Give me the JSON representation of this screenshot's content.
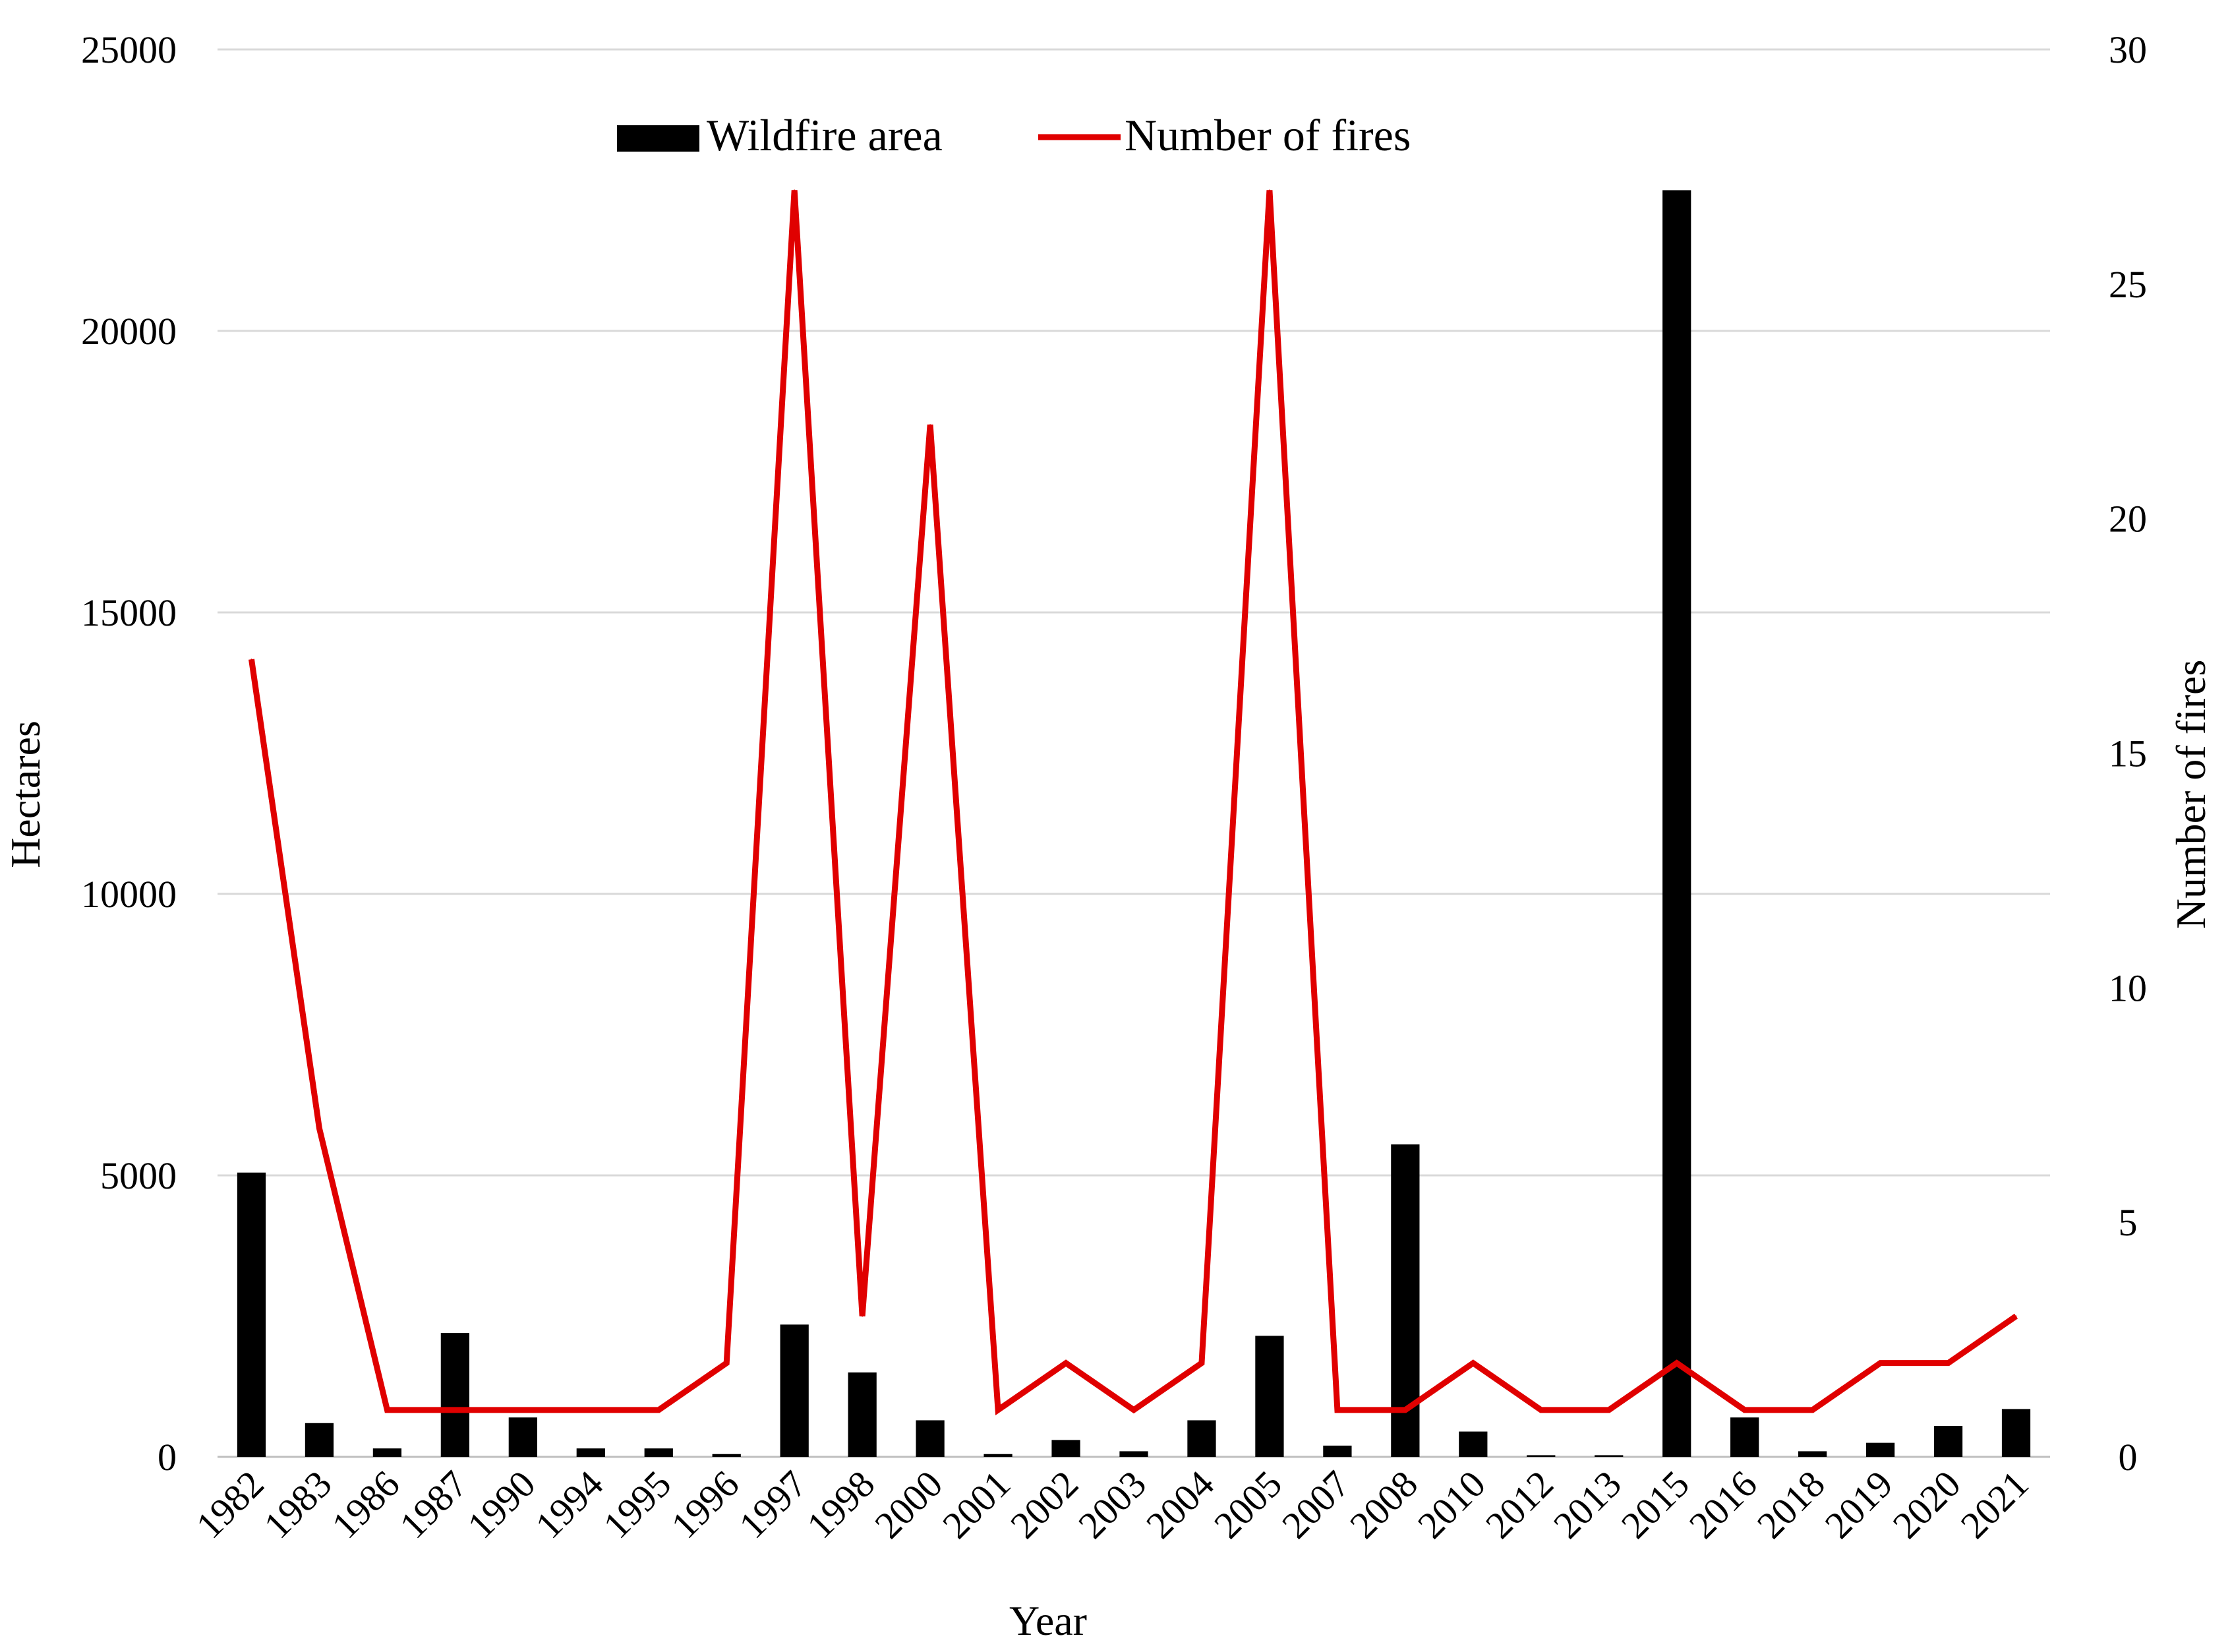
{
  "chart_data": {
    "type": "bar",
    "xlabel": "Year",
    "ylabel": "Hectares",
    "y2label": "Number of fires",
    "ylim": [
      0,
      25000
    ],
    "y2lim": [
      0,
      30
    ],
    "yticks": [
      0,
      5000,
      10000,
      15000,
      20000,
      25000
    ],
    "y2ticks": [
      0,
      5,
      10,
      15,
      20,
      25,
      30
    ],
    "grid": true,
    "legend_position": "top-center",
    "categories": [
      "1982",
      "1983",
      "1986",
      "1987",
      "1990",
      "1994",
      "1995",
      "1996",
      "1997",
      "1998",
      "2000",
      "2001",
      "2002",
      "2003",
      "2004",
      "2005",
      "2007",
      "2008",
      "2010",
      "2012",
      "2013",
      "2015",
      "2016",
      "2018",
      "2019",
      "2020",
      "2021"
    ],
    "series": [
      {
        "name": "Wildfire area",
        "type": "bar",
        "axis": "left",
        "color": "#000000",
        "values": [
          5050,
          600,
          150,
          2200,
          700,
          150,
          150,
          50,
          2350,
          1500,
          650,
          50,
          300,
          100,
          650,
          2150,
          200,
          5550,
          450,
          30,
          30,
          22500,
          700,
          100,
          250,
          550,
          850
        ]
      },
      {
        "name": "Number of fires",
        "type": "line",
        "axis": "right",
        "color": "#e00000",
        "values": [
          17,
          7,
          1,
          1,
          1,
          1,
          1,
          2,
          27,
          3,
          22,
          1,
          2,
          1,
          2,
          27,
          1,
          1,
          2,
          1,
          1,
          2,
          1,
          1,
          2,
          2,
          3
        ]
      }
    ]
  }
}
